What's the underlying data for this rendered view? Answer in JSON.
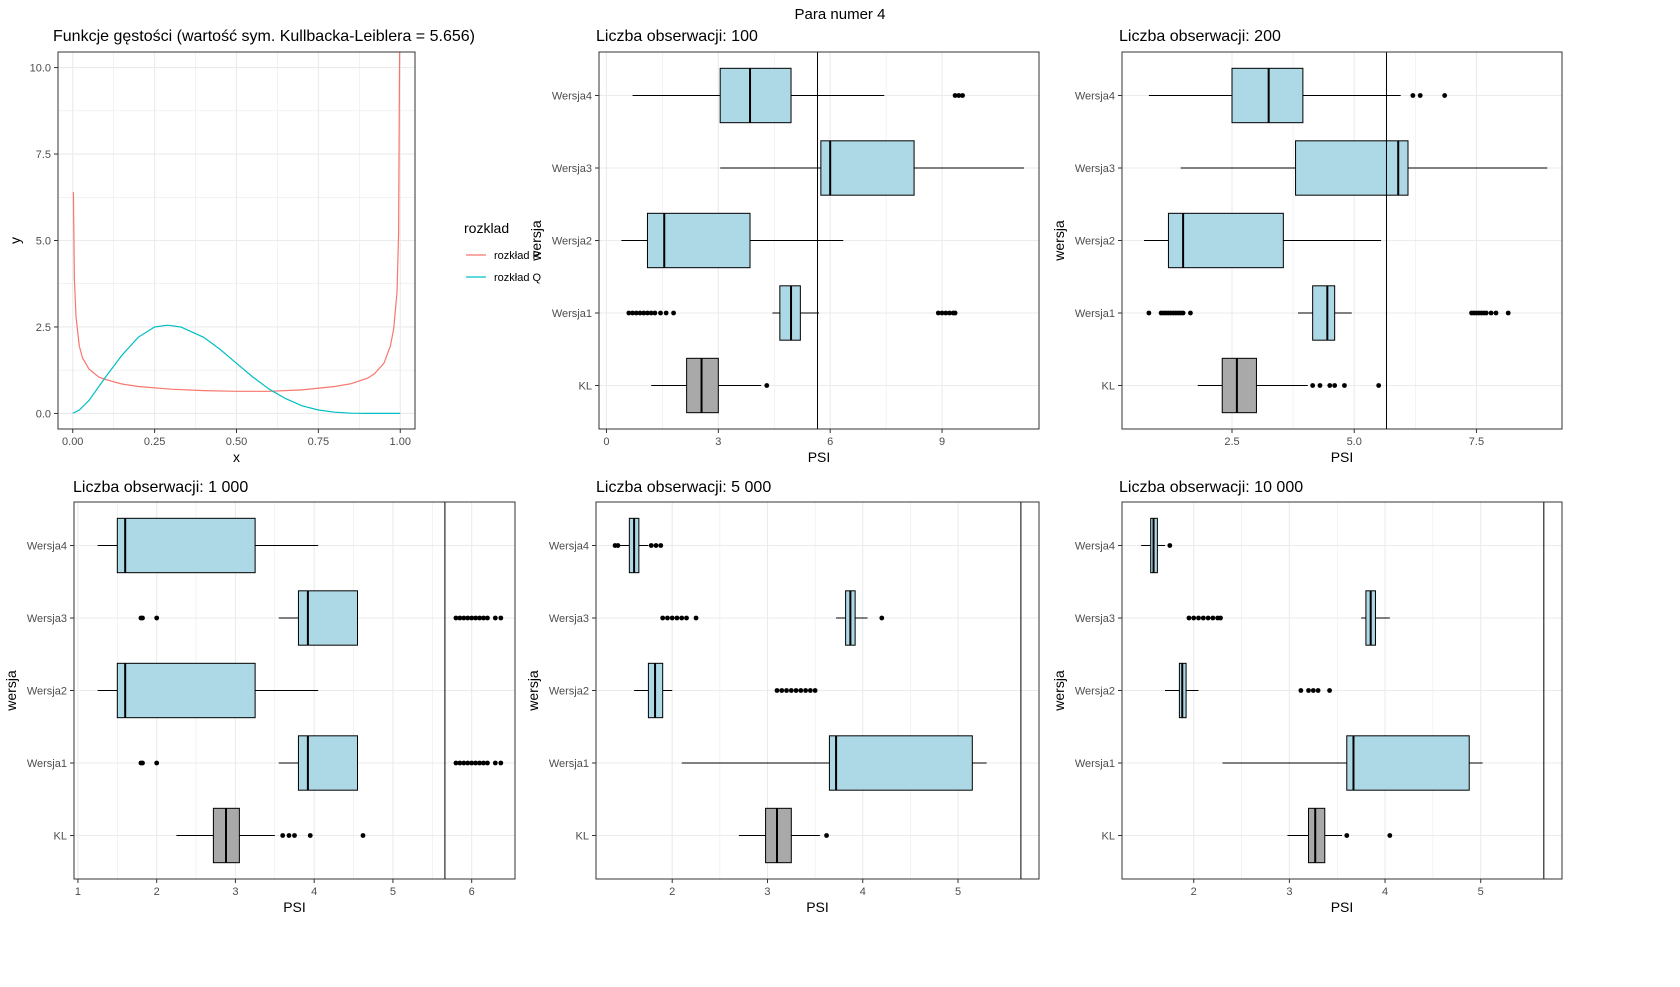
{
  "figure_title": "Para numer 4",
  "colors": {
    "box_version": "#ADD8E6",
    "box_kl": "#A9A9A9",
    "line_p": "#F8766D",
    "line_q": "#00BFC4",
    "grid": "#EBEBEB",
    "frame": "#333333"
  },
  "chart_data": [
    {
      "type": "line",
      "title": "Funkcje gęstości (wartość sym. Kullbacka-Leiblera = 5.656)",
      "xlabel": "x",
      "ylabel": "y",
      "xlim": [
        0,
        1
      ],
      "ylim": [
        0,
        10
      ],
      "xticks": [
        0,
        0.25,
        0.5,
        0.75,
        1
      ],
      "xtick_labels": [
        "0.00",
        "0.25",
        "0.50",
        "0.75",
        "1.00"
      ],
      "yticks": [
        0,
        2.5,
        5,
        7.5,
        10
      ],
      "ytick_labels": [
        "0.0",
        "2.5",
        "5.0",
        "7.5",
        "10.0"
      ],
      "grid": true,
      "legend": {
        "title": "rozklad",
        "position": "right"
      },
      "series": [
        {
          "name": "rozkład P",
          "color": "#F8766D",
          "x": [
            0.002,
            0.005,
            0.01,
            0.02,
            0.03,
            0.05,
            0.08,
            0.1,
            0.15,
            0.2,
            0.3,
            0.4,
            0.5,
            0.6,
            0.7,
            0.8,
            0.85,
            0.9,
            0.92,
            0.95,
            0.97,
            0.98,
            0.99,
            0.995,
            0.998
          ],
          "y": [
            6.4,
            3.9,
            2.8,
            1.95,
            1.6,
            1.28,
            1.05,
            0.98,
            0.85,
            0.78,
            0.7,
            0.66,
            0.64,
            0.64,
            0.68,
            0.78,
            0.86,
            1.02,
            1.14,
            1.45,
            1.95,
            2.45,
            3.5,
            5.2,
            10.5
          ]
        },
        {
          "name": "rozkład Q",
          "color": "#00BFC4",
          "x": [
            0,
            0.02,
            0.05,
            0.1,
            0.15,
            0.2,
            0.25,
            0.29,
            0.33,
            0.4,
            0.45,
            0.5,
            0.55,
            0.6,
            0.65,
            0.7,
            0.75,
            0.8,
            0.85,
            0.9,
            1.0
          ],
          "y": [
            0.0,
            0.1,
            0.38,
            1.05,
            1.68,
            2.2,
            2.5,
            2.55,
            2.5,
            2.2,
            1.85,
            1.45,
            1.05,
            0.7,
            0.43,
            0.22,
            0.1,
            0.035,
            0.008,
            0.0,
            0.0
          ]
        }
      ]
    },
    {
      "type": "boxplot",
      "title": "Liczba obserwacji: 100",
      "xlabel": "PSI",
      "ylabel": "wersja",
      "categories": [
        "Wersja4",
        "Wersja3",
        "Wersja2",
        "Wersja1",
        "KL"
      ],
      "xlim": [
        -0.2,
        11.6
      ],
      "xticks": [
        0,
        3,
        6,
        9
      ],
      "xtick_labels": [
        "0",
        "3",
        "6",
        "9"
      ],
      "vline": 5.66,
      "boxes": [
        {
          "q1": 3.05,
          "median": 3.85,
          "q3": 4.95,
          "wmin": 0.7,
          "wmax": 7.45,
          "outliers": [
            9.35,
            9.45,
            9.55
          ]
        },
        {
          "q1": 5.75,
          "median": 6.0,
          "q3": 8.25,
          "wmin": 3.05,
          "wmax": 11.2,
          "outliers": []
        },
        {
          "q1": 1.1,
          "median": 1.55,
          "q3": 3.85,
          "wmin": 0.4,
          "wmax": 6.35,
          "outliers": []
        },
        {
          "q1": 4.65,
          "median": 4.95,
          "q3": 5.2,
          "wmin": 4.45,
          "wmax": 5.7,
          "outliers": [
            0.6,
            0.7,
            0.8,
            0.9,
            1.0,
            1.1,
            1.2,
            1.3,
            1.45,
            1.6,
            1.8,
            8.9,
            9.0,
            9.1,
            9.2,
            9.3,
            9.35
          ]
        },
        {
          "q1": 2.15,
          "median": 2.55,
          "q3": 3.0,
          "wmin": 1.2,
          "wmax": 4.15,
          "outliers": [
            4.3
          ]
        }
      ]
    },
    {
      "type": "boxplot",
      "title": "Liczba obserwacji: 200",
      "xlabel": "PSI",
      "ylabel": "wersja",
      "categories": [
        "Wersja4",
        "Wersja3",
        "Wersja2",
        "Wersja1",
        "KL"
      ],
      "xlim": [
        0.25,
        9.25
      ],
      "xticks": [
        2.5,
        5.0,
        7.5
      ],
      "xtick_labels": [
        "2.5",
        "5.0",
        "7.5"
      ],
      "vline": 5.66,
      "boxes": [
        {
          "q1": 2.5,
          "median": 3.25,
          "q3": 3.95,
          "wmin": 0.8,
          "wmax": 5.95,
          "outliers": [
            6.2,
            6.35,
            6.85
          ]
        },
        {
          "q1": 3.8,
          "median": 5.9,
          "q3": 6.1,
          "wmin": 1.45,
          "wmax": 8.95,
          "outliers": []
        },
        {
          "q1": 1.2,
          "median": 1.5,
          "q3": 3.55,
          "wmin": 0.7,
          "wmax": 5.55,
          "outliers": []
        },
        {
          "q1": 4.15,
          "median": 4.45,
          "q3": 4.6,
          "wmin": 3.85,
          "wmax": 4.95,
          "outliers": [
            0.8,
            1.05,
            1.1,
            1.15,
            1.2,
            1.25,
            1.3,
            1.35,
            1.4,
            1.45,
            1.5,
            1.65,
            7.4,
            7.45,
            7.5,
            7.55,
            7.6,
            7.65,
            7.7,
            7.8,
            7.9,
            8.15
          ]
        },
        {
          "q1": 2.3,
          "median": 2.6,
          "q3": 3.0,
          "wmin": 1.8,
          "wmax": 4.05,
          "outliers": [
            4.15,
            4.3,
            4.5,
            4.6,
            4.8,
            5.5
          ]
        }
      ]
    },
    {
      "type": "boxplot",
      "title": "Liczba obserwacji: 1 000",
      "xlabel": "PSI",
      "ylabel": "wersja",
      "categories": [
        "Wersja4",
        "Wersja3",
        "Wersja2",
        "Wersja1",
        "KL"
      ],
      "xlim": [
        0.95,
        6.55
      ],
      "xticks": [
        1,
        2,
        3,
        4,
        5,
        6
      ],
      "xtick_labels": [
        "1",
        "2",
        "3",
        "4",
        "5",
        "6"
      ],
      "vline": 5.66,
      "boxes": [
        {
          "q1": 1.5,
          "median": 1.6,
          "q3": 3.25,
          "wmin": 1.25,
          "wmax": 4.05,
          "outliers": []
        },
        {
          "q1": 3.8,
          "median": 3.92,
          "q3": 4.55,
          "wmin": 3.55,
          "wmax": 4.55,
          "outliers": [
            1.8,
            1.82,
            2.0,
            5.8,
            5.85,
            5.9,
            5.95,
            6.0,
            6.05,
            6.1,
            6.15,
            6.2,
            6.3,
            6.37
          ]
        },
        {
          "q1": 1.5,
          "median": 1.6,
          "q3": 3.25,
          "wmin": 1.25,
          "wmax": 4.05,
          "outliers": []
        },
        {
          "q1": 3.8,
          "median": 3.92,
          "q3": 4.55,
          "wmin": 3.55,
          "wmax": 4.55,
          "outliers": [
            1.8,
            1.82,
            2.0,
            5.8,
            5.85,
            5.9,
            5.95,
            6.0,
            6.05,
            6.1,
            6.15,
            6.2,
            6.3,
            6.37
          ]
        },
        {
          "q1": 2.72,
          "median": 2.88,
          "q3": 3.05,
          "wmin": 2.25,
          "wmax": 3.5,
          "outliers": [
            3.6,
            3.68,
            3.75,
            3.95,
            4.62
          ]
        }
      ]
    },
    {
      "type": "boxplot",
      "title": "Liczba obserwacji: 5 000",
      "xlabel": "PSI",
      "ylabel": "wersja",
      "categories": [
        "Wersja4",
        "Wersja3",
        "Wersja2",
        "Wersja1",
        "KL"
      ],
      "xlim": [
        1.2,
        5.85
      ],
      "xticks": [
        2,
        3,
        4,
        5
      ],
      "xtick_labels": [
        "2",
        "3",
        "4",
        "5"
      ],
      "vline": 5.66,
      "boxes": [
        {
          "q1": 1.55,
          "median": 1.6,
          "q3": 1.65,
          "wmin": 1.45,
          "wmax": 1.75,
          "outliers": [
            1.4,
            1.43,
            1.78,
            1.83,
            1.88
          ]
        },
        {
          "q1": 3.82,
          "median": 3.87,
          "q3": 3.92,
          "wmin": 3.72,
          "wmax": 4.05,
          "outliers": [
            1.9,
            1.95,
            2.0,
            2.05,
            2.1,
            2.15,
            2.25,
            4.2
          ]
        },
        {
          "q1": 1.75,
          "median": 1.82,
          "q3": 1.9,
          "wmin": 1.6,
          "wmax": 2.0,
          "outliers": [
            3.1,
            3.15,
            3.2,
            3.25,
            3.3,
            3.35,
            3.4,
            3.45,
            3.5
          ]
        },
        {
          "q1": 3.65,
          "median": 3.72,
          "q3": 5.15,
          "wmin": 2.1,
          "wmax": 5.3,
          "outliers": []
        },
        {
          "q1": 2.98,
          "median": 3.1,
          "q3": 3.25,
          "wmin": 2.7,
          "wmax": 3.55,
          "outliers": [
            3.62
          ]
        }
      ]
    },
    {
      "type": "boxplot",
      "title": "Liczba obserwacji: 10 000",
      "xlabel": "PSI",
      "ylabel": "wersja",
      "categories": [
        "Wersja4",
        "Wersja3",
        "Wersja2",
        "Wersja1",
        "KL"
      ],
      "xlim": [
        1.25,
        5.85
      ],
      "xticks": [
        2,
        3,
        4,
        5
      ],
      "xtick_labels": [
        "2",
        "3",
        "4",
        "5"
      ],
      "vline": 5.66,
      "boxes": [
        {
          "q1": 1.55,
          "median": 1.58,
          "q3": 1.62,
          "wmin": 1.45,
          "wmax": 1.7,
          "outliers": [
            1.75
          ]
        },
        {
          "q1": 3.8,
          "median": 3.85,
          "q3": 3.9,
          "wmin": 3.75,
          "wmax": 4.05,
          "outliers": [
            1.95,
            2.0,
            2.05,
            2.1,
            2.15,
            2.2,
            2.25,
            2.28
          ]
        },
        {
          "q1": 1.85,
          "median": 1.88,
          "q3": 1.92,
          "wmin": 1.7,
          "wmax": 2.05,
          "outliers": [
            3.12,
            3.2,
            3.25,
            3.3,
            3.42
          ]
        },
        {
          "q1": 3.6,
          "median": 3.67,
          "q3": 4.88,
          "wmin": 2.3,
          "wmax": 5.02,
          "outliers": []
        },
        {
          "q1": 3.2,
          "median": 3.27,
          "q3": 3.37,
          "wmin": 2.98,
          "wmax": 3.55,
          "outliers": [
            3.6,
            4.05
          ]
        }
      ]
    }
  ]
}
